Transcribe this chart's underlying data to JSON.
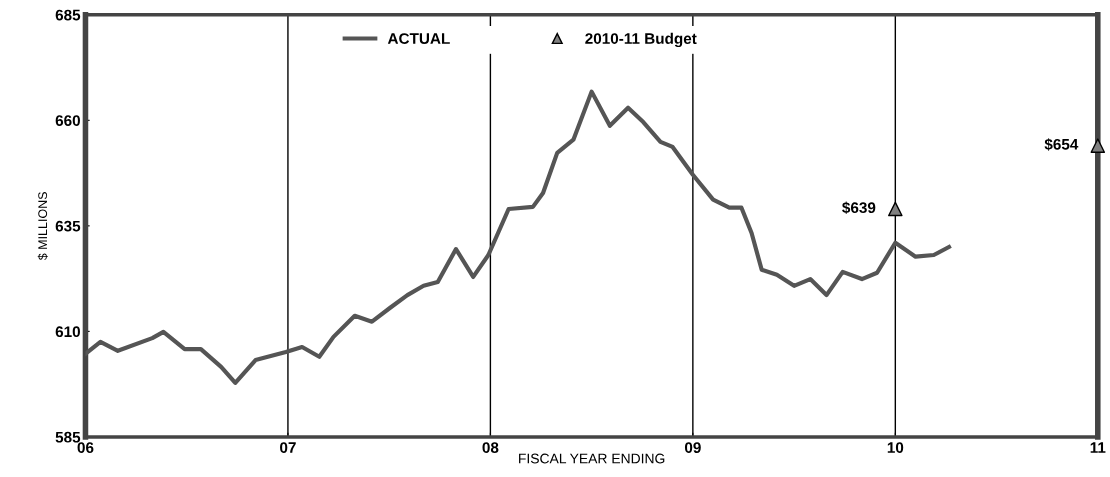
{
  "chart_data": {
    "type": "line",
    "xlabel": "FISCAL YEAR ENDING",
    "ylabel": "$ MILLIONS",
    "xlim": [
      6,
      11
    ],
    "ylim": [
      585,
      685
    ],
    "xticks": [
      {
        "value": 6,
        "label": "06"
      },
      {
        "value": 7,
        "label": "07"
      },
      {
        "value": 8,
        "label": "08"
      },
      {
        "value": 9,
        "label": "09"
      },
      {
        "value": 10,
        "label": "10"
      },
      {
        "value": 11,
        "label": "11"
      }
    ],
    "yticks": [
      585,
      610,
      635,
      660,
      685
    ],
    "grid": "x",
    "legend": "top",
    "series": [
      {
        "name": "ACTUAL",
        "color": "#555555",
        "marker": "none",
        "line_style": "solid",
        "x": [
          6.0,
          6.074,
          6.16,
          6.33,
          6.385,
          6.49,
          6.57,
          6.67,
          6.74,
          6.84,
          6.99,
          7.07,
          7.155,
          7.225,
          7.33,
          7.415,
          7.505,
          7.59,
          7.67,
          7.74,
          7.83,
          7.915,
          7.99,
          8.09,
          8.21,
          8.26,
          8.33,
          8.41,
          8.5,
          8.59,
          8.68,
          8.755,
          8.84,
          8.9,
          9.0,
          9.1,
          9.18,
          9.24,
          9.29,
          9.34,
          9.415,
          9.5,
          9.58,
          9.66,
          9.74,
          9.835,
          9.91,
          10.0,
          10.1,
          10.19,
          10.265
        ],
        "values": [
          604.7,
          607.5,
          605.4,
          608.4,
          609.9,
          605.8,
          605.8,
          601.6,
          597.8,
          603.2,
          605.1,
          606.3,
          604.0,
          608.7,
          613.7,
          612.3,
          615.6,
          618.6,
          620.8,
          621.7,
          629.5,
          622.9,
          628.1,
          639.0,
          639.5,
          642.8,
          652.3,
          655.4,
          666.8,
          658.7,
          663.0,
          659.6,
          654.9,
          653.7,
          647.1,
          641.2,
          639.3,
          639.3,
          633.3,
          624.6,
          623.4,
          620.8,
          622.4,
          618.6,
          624.1,
          622.4,
          623.9,
          631.0,
          627.7,
          628.1,
          630.0
        ]
      },
      {
        "name": "2010-11 Budget",
        "type": "scatter",
        "color": "#808080",
        "marker": "triangle",
        "x": [
          10,
          11
        ],
        "values": [
          639,
          654
        ],
        "value_labels": [
          "$639",
          "$654"
        ]
      }
    ]
  }
}
